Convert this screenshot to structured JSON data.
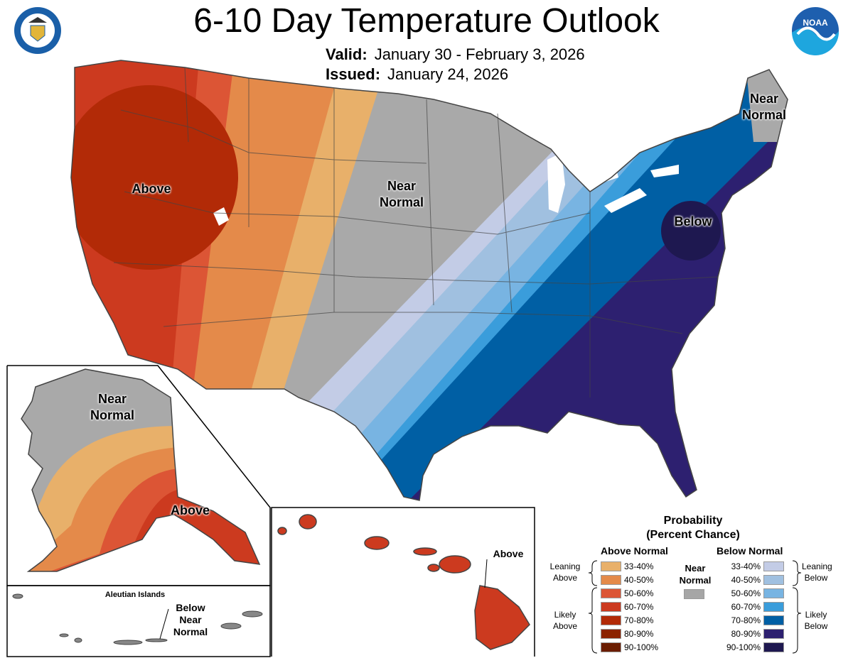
{
  "header": {
    "title": "6-10 Day Temperature Outlook",
    "valid_label": "Valid:",
    "valid_value": "January 30 - February 3, 2026",
    "issued_label": "Issued:",
    "issued_value": "January 24, 2026",
    "logos": [
      "department-of-commerce-seal",
      "noaa-logo"
    ],
    "noaa_logo_text": "NOAA"
  },
  "map": {
    "labels": {
      "west": "Above",
      "central": "Near Normal",
      "east": "Below",
      "northeast": "Near Normal"
    },
    "alaska": {
      "north": "Near Normal",
      "south": "Above"
    },
    "aleutians": {
      "title": "Aleutian Islands",
      "label": "Below Near Normal"
    },
    "hawaii": {
      "label": "Above"
    }
  },
  "legend": {
    "title_line1": "Probability",
    "title_line2": "(Percent Chance)",
    "above_header": "Above Normal",
    "below_header": "Below Normal",
    "near_label": "Near Normal",
    "near_color": "#a6a6a6",
    "leaning_above": "Leaning Above",
    "likely_above": "Likely Above",
    "leaning_below": "Leaning Below",
    "likely_below": "Likely Below",
    "above": [
      {
        "range": "33-40%",
        "color": "#e8b06a"
      },
      {
        "range": "40-50%",
        "color": "#e48a4a"
      },
      {
        "range": "50-60%",
        "color": "#dc5535"
      },
      {
        "range": "60-70%",
        "color": "#cc3a1f"
      },
      {
        "range": "70-80%",
        "color": "#b22a07"
      },
      {
        "range": "80-90%",
        "color": "#8c2200"
      },
      {
        "range": "90-100%",
        "color": "#6b1d00"
      }
    ],
    "below": [
      {
        "range": "33-40%",
        "color": "#c3cce6"
      },
      {
        "range": "40-50%",
        "color": "#a0c0e0"
      },
      {
        "range": "50-60%",
        "color": "#78b4e2"
      },
      {
        "range": "60-70%",
        "color": "#3a9ddb"
      },
      {
        "range": "70-80%",
        "color": "#005fa4"
      },
      {
        "range": "80-90%",
        "color": "#2d2070"
      },
      {
        "range": "90-100%",
        "color": "#1e1850"
      }
    ]
  }
}
